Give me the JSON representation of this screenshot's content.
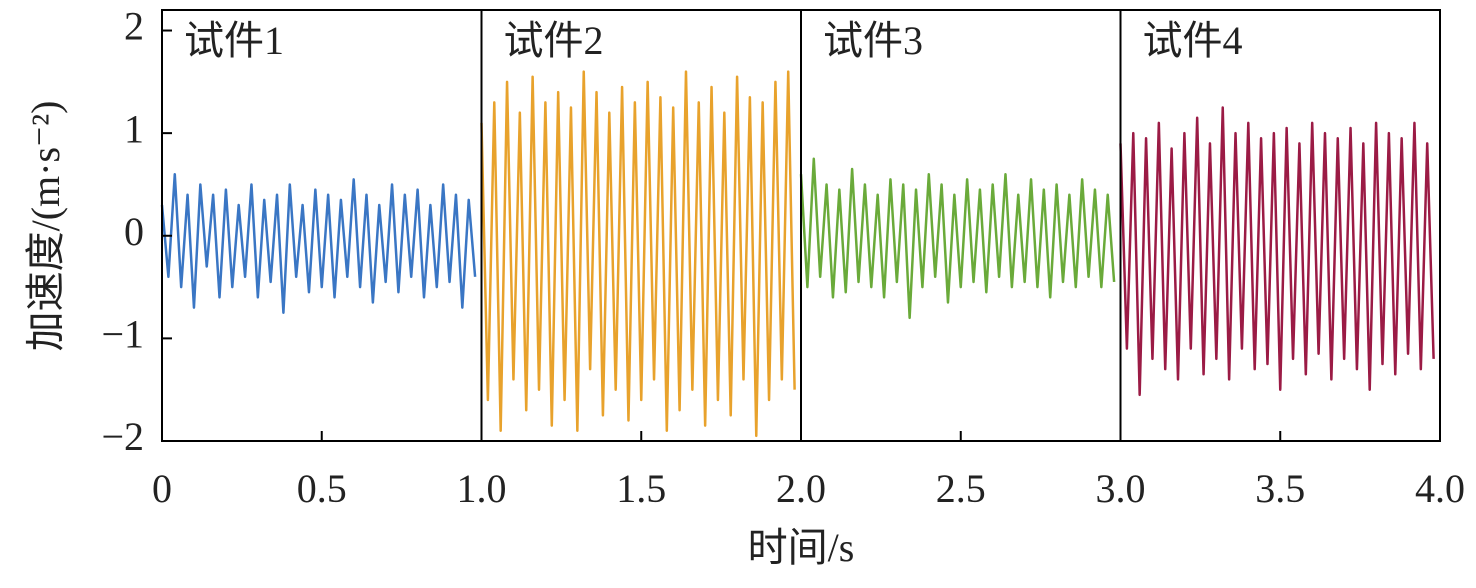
{
  "chart_data": {
    "type": "line",
    "xlabel": "时间/s",
    "ylabel": "加速度/(m·s⁻²)",
    "annotations": [
      "试件1",
      "试件2",
      "试件3",
      "试件4"
    ],
    "xlim": [
      0,
      4
    ],
    "ylim": [
      -2,
      2.2
    ],
    "xticks": [
      0,
      0.5,
      {
        "value": 1,
        "label": "1.0"
      },
      1.5,
      {
        "value": 2,
        "label": "2.0"
      },
      2.5,
      {
        "value": 3,
        "label": "3.0"
      },
      3.5,
      {
        "value": 4,
        "label": "4.0"
      }
    ],
    "yticks": [
      {
        "value": -2,
        "label": "−2"
      },
      {
        "value": -1,
        "label": "−1"
      },
      0,
      1,
      2
    ],
    "series": [
      {
        "color": "#3a76c4",
        "x": [
          0,
          0.02,
          0.04,
          0.06,
          0.08,
          0.1,
          0.12,
          0.14,
          0.16,
          0.18,
          0.2,
          0.22,
          0.24,
          0.26,
          0.28,
          0.3,
          0.32,
          0.34,
          0.36,
          0.38,
          0.4,
          0.42,
          0.44,
          0.46,
          0.48,
          0.5,
          0.52,
          0.54,
          0.56,
          0.58,
          0.6,
          0.62,
          0.64,
          0.66,
          0.68,
          0.7,
          0.72,
          0.74,
          0.76,
          0.78,
          0.8,
          0.82,
          0.84,
          0.86,
          0.88,
          0.9,
          0.92,
          0.94,
          0.96,
          0.98
        ],
        "values": [
          0.3,
          -0.4,
          0.6,
          -0.5,
          0.4,
          -0.7,
          0.5,
          -0.3,
          0.4,
          -0.6,
          0.45,
          -0.5,
          0.3,
          -0.4,
          0.5,
          -0.6,
          0.35,
          -0.45,
          0.4,
          -0.75,
          0.5,
          -0.4,
          0.3,
          -0.55,
          0.45,
          -0.5,
          0.4,
          -0.6,
          0.35,
          -0.4,
          0.55,
          -0.5,
          0.4,
          -0.65,
          0.3,
          -0.45,
          0.5,
          -0.55,
          0.4,
          -0.4,
          0.45,
          -0.6,
          0.3,
          -0.5,
          0.5,
          -0.45,
          0.4,
          -0.7,
          0.35,
          -0.4
        ]
      },
      {
        "color": "#e8a22c",
        "x": [
          1,
          1.02,
          1.04,
          1.06,
          1.08,
          1.1,
          1.12,
          1.14,
          1.16,
          1.18,
          1.2,
          1.22,
          1.24,
          1.26,
          1.28,
          1.3,
          1.32,
          1.34,
          1.36,
          1.38,
          1.4,
          1.42,
          1.44,
          1.46,
          1.48,
          1.5,
          1.52,
          1.54,
          1.56,
          1.58,
          1.6,
          1.62,
          1.64,
          1.66,
          1.68,
          1.7,
          1.72,
          1.74,
          1.76,
          1.78,
          1.8,
          1.82,
          1.84,
          1.86,
          1.88,
          1.9,
          1.92,
          1.94,
          1.96,
          1.98
        ],
        "values": [
          1.1,
          -1.6,
          1.3,
          -1.9,
          1.5,
          -1.4,
          1.2,
          -1.7,
          1.55,
          -1.5,
          1.3,
          -1.85,
          1.4,
          -1.6,
          1.25,
          -1.9,
          1.6,
          -1.3,
          1.4,
          -1.75,
          1.2,
          -1.5,
          1.45,
          -1.8,
          1.3,
          -1.6,
          1.5,
          -1.4,
          1.35,
          -1.9,
          1.25,
          -1.7,
          1.6,
          -1.5,
          1.3,
          -1.85,
          1.45,
          -1.6,
          1.2,
          -1.75,
          1.55,
          -1.4,
          1.35,
          -1.95,
          1.3,
          -1.6,
          1.5,
          -1.4,
          1.6,
          -1.5
        ]
      },
      {
        "color": "#6aaa3a",
        "x": [
          2,
          2.02,
          2.04,
          2.06,
          2.08,
          2.1,
          2.12,
          2.14,
          2.16,
          2.18,
          2.2,
          2.22,
          2.24,
          2.26,
          2.28,
          2.3,
          2.32,
          2.34,
          2.36,
          2.38,
          2.4,
          2.42,
          2.44,
          2.46,
          2.48,
          2.5,
          2.52,
          2.54,
          2.56,
          2.58,
          2.6,
          2.62,
          2.64,
          2.66,
          2.68,
          2.7,
          2.72,
          2.74,
          2.76,
          2.78,
          2.8,
          2.82,
          2.84,
          2.86,
          2.88,
          2.9,
          2.92,
          2.94,
          2.96,
          2.98
        ],
        "values": [
          0.6,
          -0.5,
          0.75,
          -0.4,
          0.5,
          -0.6,
          0.45,
          -0.55,
          0.65,
          -0.45,
          0.5,
          -0.5,
          0.4,
          -0.6,
          0.55,
          -0.45,
          0.5,
          -0.8,
          0.45,
          -0.5,
          0.6,
          -0.4,
          0.5,
          -0.65,
          0.4,
          -0.5,
          0.55,
          -0.45,
          0.45,
          -0.55,
          0.5,
          -0.4,
          0.6,
          -0.5,
          0.4,
          -0.45,
          0.55,
          -0.5,
          0.45,
          -0.6,
          0.5,
          -0.45,
          0.4,
          -0.5,
          0.55,
          -0.4,
          0.45,
          -0.5,
          0.4,
          -0.45
        ]
      },
      {
        "color": "#9b1b45",
        "x": [
          3,
          3.02,
          3.04,
          3.06,
          3.08,
          3.1,
          3.12,
          3.14,
          3.16,
          3.18,
          3.2,
          3.22,
          3.24,
          3.26,
          3.28,
          3.3,
          3.32,
          3.34,
          3.36,
          3.38,
          3.4,
          3.42,
          3.44,
          3.46,
          3.48,
          3.5,
          3.52,
          3.54,
          3.56,
          3.58,
          3.6,
          3.62,
          3.64,
          3.66,
          3.68,
          3.7,
          3.72,
          3.74,
          3.76,
          3.78,
          3.8,
          3.82,
          3.84,
          3.86,
          3.88,
          3.9,
          3.92,
          3.94,
          3.96,
          3.98
        ],
        "values": [
          0.9,
          -1.1,
          1.0,
          -1.55,
          0.95,
          -1.2,
          1.1,
          -1.3,
          0.85,
          -1.4,
          1.0,
          -1.1,
          1.15,
          -1.35,
          0.9,
          -1.2,
          1.25,
          -1.4,
          1.0,
          -1.1,
          1.1,
          -1.3,
          0.95,
          -1.25,
          1.0,
          -1.5,
          1.05,
          -1.2,
          0.9,
          -1.35,
          1.1,
          -1.15,
          1.0,
          -1.4,
          0.95,
          -1.2,
          1.05,
          -1.3,
          0.9,
          -1.5,
          1.1,
          -1.25,
          1.0,
          -1.35,
          0.95,
          -1.15,
          1.1,
          -1.3,
          0.9,
          -1.2
        ]
      }
    ]
  }
}
